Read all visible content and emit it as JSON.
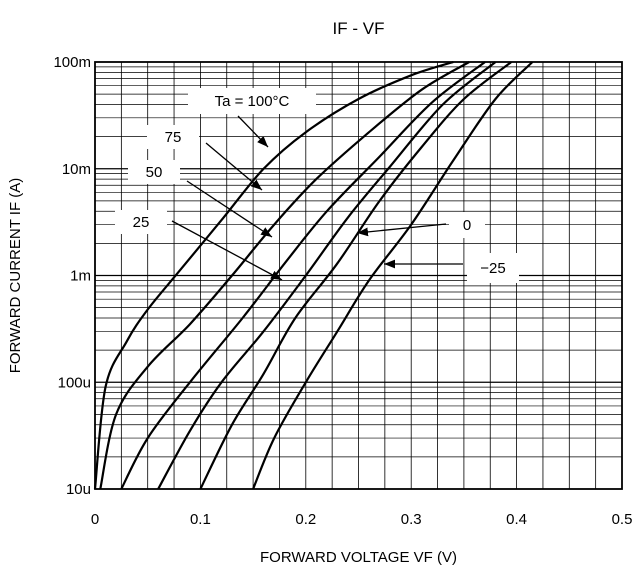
{
  "chart_data": {
    "type": "line",
    "title": "IF - VF",
    "xlabel": "FORWARD VOLTAGE  VF (V)",
    "ylabel": "FORWARD CURRENT  IF (A)",
    "xlim": [
      0,
      0.5
    ],
    "ylim": [
      1e-05,
      0.1
    ],
    "yscale": "log",
    "grid": true,
    "x_ticks": [
      0,
      0.1,
      0.2,
      0.3,
      0.4,
      0.5
    ],
    "x_tick_labels": [
      "0",
      "0.1",
      "0.2",
      "0.3",
      "0.4",
      "0.5"
    ],
    "y_ticks": [
      1e-05,
      0.0001,
      0.001,
      0.01,
      0.1
    ],
    "y_tick_labels": [
      "10u",
      "100u",
      "1m",
      "10m",
      "100m"
    ],
    "series": [
      {
        "name": "Ta = 100°C",
        "x": [
          0.0,
          0.01,
          0.03,
          0.05,
          0.08,
          0.12,
          0.16,
          0.2,
          0.25,
          0.3,
          0.34
        ],
        "y": [
          1e-05,
          9e-05,
          0.00024,
          0.00048,
          0.0011,
          0.0033,
          0.01,
          0.022,
          0.045,
          0.075,
          0.1
        ]
      },
      {
        "name": "75",
        "x": [
          0.005,
          0.02,
          0.05,
          0.09,
          0.13,
          0.17,
          0.21,
          0.26,
          0.31,
          0.355
        ],
        "y": [
          1e-05,
          5e-05,
          0.00014,
          0.00035,
          0.001,
          0.003,
          0.008,
          0.022,
          0.055,
          0.1
        ]
      },
      {
        "name": "50",
        "x": [
          0.025,
          0.05,
          0.09,
          0.14,
          0.18,
          0.22,
          0.27,
          0.32,
          0.37
        ],
        "y": [
          1e-05,
          3e-05,
          0.0001,
          0.0004,
          0.0013,
          0.004,
          0.013,
          0.042,
          0.1
        ]
      },
      {
        "name": "25",
        "x": [
          0.06,
          0.09,
          0.12,
          0.16,
          0.2,
          0.24,
          0.28,
          0.33,
          0.38
        ],
        "y": [
          1e-05,
          3.5e-05,
          0.0001,
          0.0003,
          0.001,
          0.0035,
          0.0105,
          0.04,
          0.1
        ]
      },
      {
        "name": "0",
        "x": [
          0.1,
          0.13,
          0.16,
          0.19,
          0.23,
          0.27,
          0.31,
          0.35,
          0.395
        ],
        "y": [
          1e-05,
          4e-05,
          0.00012,
          0.0004,
          0.0013,
          0.005,
          0.016,
          0.045,
          0.1
        ]
      },
      {
        "name": "−25",
        "x": [
          0.15,
          0.17,
          0.2,
          0.23,
          0.26,
          0.3,
          0.34,
          0.38,
          0.415
        ],
        "y": [
          1e-05,
          3e-05,
          0.0001,
          0.0003,
          0.0009,
          0.003,
          0.012,
          0.045,
          0.1
        ]
      }
    ],
    "annotations": [
      "Ta = 100°C",
      "75",
      "50",
      "25",
      "0",
      "−25"
    ]
  }
}
